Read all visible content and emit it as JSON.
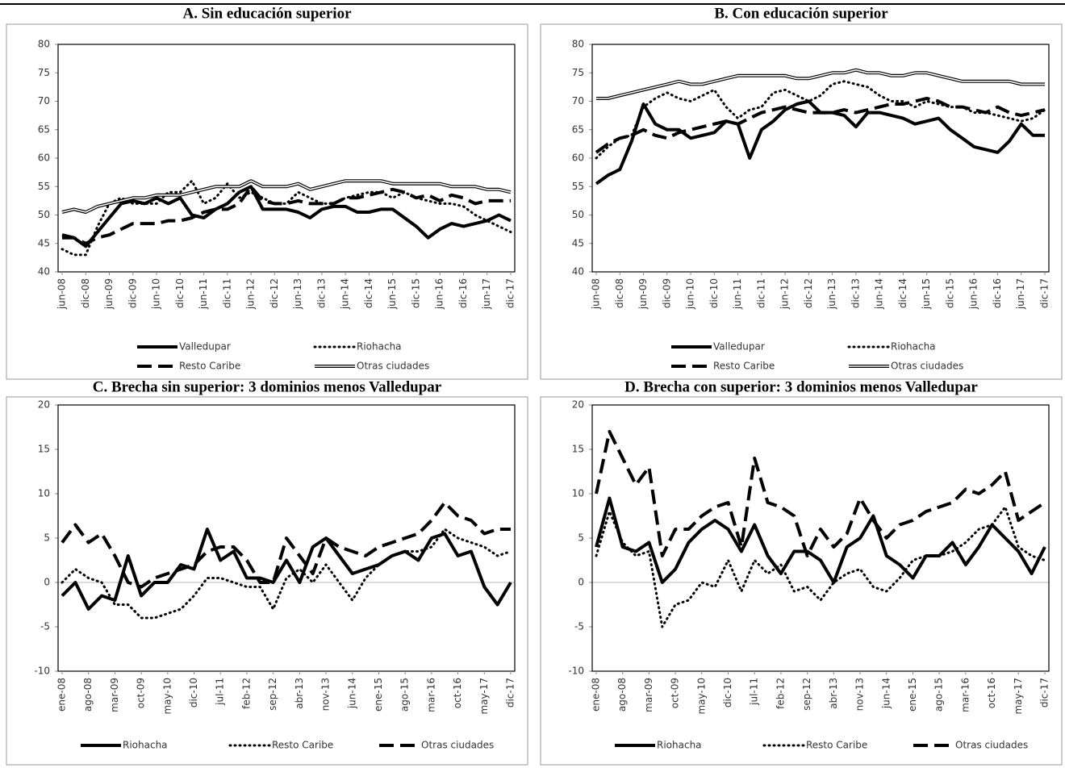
{
  "chart_data": [
    {
      "type": "line",
      "title": "A. Sin educación superior",
      "categories": [
        "jun-08",
        null,
        "dic-08",
        null,
        "jun-09",
        null,
        "dic-09",
        null,
        "jun-10",
        null,
        "dic-10",
        null,
        "jun-11",
        null,
        "dic-11",
        null,
        "jun-12",
        null,
        "dic-12",
        null,
        "jun-13",
        null,
        "dic-13",
        null,
        "jun-14",
        null,
        "dic-14",
        null,
        "jun-15",
        null,
        "dic-15",
        null,
        "jun-16",
        null,
        "dic-16",
        null,
        "jun-17",
        null,
        "dic-17"
      ],
      "ylim": [
        40,
        80
      ],
      "yticks": [
        40,
        45,
        50,
        55,
        60,
        65,
        70,
        75,
        80
      ],
      "zero_line": false,
      "series": [
        {
          "name": "Valledupar",
          "color": "#000000",
          "line_style": "solid",
          "values": [
            46,
            46,
            44.5,
            47,
            49.5,
            52,
            52.5,
            52,
            53,
            52,
            53,
            50,
            49.5,
            51,
            52,
            54,
            55,
            51,
            51,
            51,
            50.5,
            49.5,
            51,
            51.5,
            51.5,
            50.5,
            50.5,
            51,
            51,
            49.5,
            48,
            46,
            47.5,
            48.5,
            48,
            48.5,
            49,
            50,
            49
          ]
        },
        {
          "name": "Riohacha",
          "color": "#000000",
          "line_style": "dotted",
          "values": [
            44,
            43,
            43,
            48,
            52,
            53,
            52,
            52,
            52,
            54,
            54,
            56,
            52,
            53,
            55.5,
            53,
            54,
            53,
            52,
            52,
            54,
            53,
            52,
            52,
            53,
            53.5,
            54,
            54,
            53,
            54,
            53,
            52.5,
            52,
            52,
            51.5,
            50,
            49,
            48,
            47
          ]
        },
        {
          "name": "Resto Caribe",
          "color": "#000000",
          "line_style": "dashed",
          "values": [
            46.5,
            46,
            45,
            46,
            46.5,
            47.5,
            48.5,
            48.5,
            48.5,
            49,
            49,
            49.5,
            50.5,
            51,
            51,
            52,
            55,
            52.5,
            52,
            52,
            52.5,
            52,
            52,
            52,
            53,
            53,
            53.5,
            54,
            54.5,
            54,
            53,
            53.5,
            52.5,
            53.5,
            53,
            52,
            52.5,
            52.5,
            52.5
          ]
        },
        {
          "name": "Otras ciudades",
          "color": "#000000",
          "line_style": "double",
          "values": [
            50.5,
            51,
            50.5,
            51.5,
            52,
            52.5,
            53,
            53,
            53.5,
            53.5,
            53.5,
            54,
            54.5,
            55,
            55,
            55,
            56,
            55,
            55,
            55,
            55.5,
            54.5,
            55,
            55.5,
            56,
            56,
            56,
            56,
            55.5,
            55.5,
            55.5,
            55.5,
            55.5,
            55,
            55,
            55,
            54.5,
            54.5,
            54
          ]
        }
      ]
    },
    {
      "type": "line",
      "title": "B. Con educación superior",
      "categories": [
        "jun-08",
        null,
        "dic-08",
        null,
        "jun-09",
        null,
        "dic-09",
        null,
        "jun-10",
        null,
        "dic-10",
        null,
        "jun-11",
        null,
        "dic-11",
        null,
        "jun-12",
        null,
        "dic-12",
        null,
        "jun-13",
        null,
        "dic-13",
        null,
        "jun-14",
        null,
        "dic-14",
        null,
        "jun-15",
        null,
        "dic-15",
        null,
        "jun-16",
        null,
        "dic-16",
        null,
        "jun-17",
        null,
        "dic-17"
      ],
      "ylim": [
        40,
        80
      ],
      "yticks": [
        40,
        45,
        50,
        55,
        60,
        65,
        70,
        75,
        80
      ],
      "zero_line": false,
      "series": [
        {
          "name": "Valledupar",
          "color": "#000000",
          "line_style": "solid",
          "values": [
            55.5,
            57,
            58,
            63,
            69.5,
            66,
            65,
            65,
            63.5,
            64,
            64.5,
            66.5,
            66,
            60,
            65,
            66.5,
            68.5,
            69.5,
            70,
            68,
            68,
            67.5,
            65.5,
            68,
            68,
            67.5,
            67,
            66,
            66.5,
            67,
            65,
            63.5,
            62,
            61.5,
            61,
            63,
            66,
            64,
            64
          ]
        },
        {
          "name": "Riohacha",
          "color": "#000000",
          "line_style": "dotted",
          "values": [
            60,
            62,
            63.5,
            64,
            69,
            70.5,
            71.5,
            70.5,
            70,
            71,
            72,
            69,
            67,
            68.5,
            69,
            71.5,
            72,
            71,
            70,
            71,
            73,
            73.5,
            73,
            72.5,
            71,
            70,
            70,
            69,
            70,
            69.5,
            69,
            69,
            68,
            68,
            67.5,
            67,
            66.5,
            67,
            68.5
          ]
        },
        {
          "name": "Resto Caribe",
          "color": "#000000",
          "line_style": "dashed",
          "values": [
            61,
            62.5,
            63.5,
            64,
            65,
            64,
            63.5,
            64.5,
            65,
            65.5,
            66,
            66.5,
            66,
            67,
            68,
            68.5,
            69,
            68.5,
            68,
            68,
            68,
            68.5,
            68,
            68.5,
            69,
            69.5,
            69.5,
            70,
            70.5,
            70,
            69,
            69,
            68.5,
            68,
            69,
            68,
            67.5,
            68,
            68.5
          ]
        },
        {
          "name": "Otras ciudades",
          "color": "#000000",
          "line_style": "double",
          "values": [
            70.5,
            70.5,
            71,
            71.5,
            72,
            72.5,
            73,
            73.5,
            73,
            73,
            73.5,
            74,
            74.5,
            74.5,
            74.5,
            74.5,
            74.5,
            74,
            74,
            74.5,
            75,
            75,
            75.5,
            75,
            75,
            74.5,
            74.5,
            75,
            75,
            74.5,
            74,
            73.5,
            73.5,
            73.5,
            73.5,
            73.5,
            73,
            73,
            73
          ]
        }
      ]
    },
    {
      "type": "line",
      "title": "C. Brecha sin superior: 3 dominios menos Valledupar",
      "categories": [
        "ene-08",
        null,
        "ago-08",
        null,
        "mar-09",
        null,
        "oct-09",
        null,
        "may-10",
        null,
        "dic-10",
        null,
        "jul-11",
        null,
        "feb-12",
        null,
        "sep-12",
        null,
        "abr-13",
        null,
        "nov-13",
        null,
        "jun-14",
        null,
        "ene-15",
        null,
        "ago-15",
        null,
        "mar-16",
        null,
        "oct-16",
        null,
        "may-17",
        null,
        "dic-17"
      ],
      "ylim": [
        -10,
        20
      ],
      "yticks": [
        -10,
        -5,
        0,
        5,
        10,
        15,
        20
      ],
      "zero_line": true,
      "series": [
        {
          "name": "Riohacha",
          "color": "#000000",
          "line_style": "solid",
          "values": [
            -1.5,
            0,
            -3,
            -1.5,
            -2,
            3,
            -1.5,
            0,
            0,
            2,
            1.5,
            6,
            2.5,
            3.5,
            0.5,
            0.5,
            0,
            2.5,
            0,
            4,
            5,
            3,
            1,
            1.5,
            2,
            3,
            3.5,
            2.5,
            5,
            5.5,
            3,
            3.5,
            -0.5,
            -2.5,
            0
          ]
        },
        {
          "name": "Resto Caribe",
          "color": "#000000",
          "line_style": "dotted",
          "values": [
            0,
            1.5,
            0.5,
            0,
            -2.5,
            -2.5,
            -4,
            -4,
            -3.5,
            -3,
            -1.5,
            0.5,
            0.5,
            0,
            -0.5,
            -0.5,
            -3,
            0.5,
            1.5,
            0,
            2,
            0,
            -2,
            0.5,
            2,
            3,
            3.5,
            3.5,
            4,
            6,
            5,
            4.5,
            4,
            3,
            3.5
          ]
        },
        {
          "name": "Otras ciudades",
          "color": "#000000",
          "line_style": "dashed",
          "values": [
            4.5,
            6.5,
            4.5,
            5.5,
            3,
            0,
            -0.5,
            0.5,
            1,
            1.5,
            2,
            3.5,
            4,
            4,
            2.5,
            0,
            0,
            5,
            3,
            1,
            5,
            4,
            3.5,
            3,
            4,
            4.5,
            5,
            5.5,
            7,
            9,
            7.5,
            7,
            5.5,
            6,
            6
          ]
        }
      ]
    },
    {
      "type": "line",
      "title": "D. Brecha con superior: 3 dominios menos Valledupar",
      "categories": [
        "ene-08",
        null,
        "ago-08",
        null,
        "mar-09",
        null,
        "oct-09",
        null,
        "may-10",
        null,
        "dic-10",
        null,
        "jul-11",
        null,
        "feb-12",
        null,
        "sep-12",
        null,
        "abr-13",
        null,
        "nov-13",
        null,
        "jun-14",
        null,
        "ene-15",
        null,
        "ago-15",
        null,
        "mar-16",
        null,
        "oct-16",
        null,
        "may-17",
        null,
        "dic-17"
      ],
      "ylim": [
        -10,
        20
      ],
      "yticks": [
        -10,
        -5,
        0,
        5,
        10,
        15,
        20
      ],
      "zero_line": true,
      "series": [
        {
          "name": "Riohacha",
          "color": "#000000",
          "line_style": "solid",
          "values": [
            4,
            9.5,
            4,
            3.5,
            4.5,
            0,
            1.5,
            4.5,
            6,
            7,
            6,
            3.5,
            6.5,
            3,
            1,
            3.5,
            3.5,
            2.5,
            0,
            4,
            5,
            7.5,
            3,
            2,
            0.5,
            3,
            3,
            4.5,
            2,
            4,
            6.5,
            5,
            3.5,
            1,
            4
          ]
        },
        {
          "name": "Resto Caribe",
          "color": "#000000",
          "line_style": "dotted",
          "values": [
            3,
            8,
            4.5,
            3,
            3.5,
            -5,
            -2.5,
            -2,
            0,
            -0.5,
            2.5,
            -1,
            2.5,
            1,
            2,
            -1,
            -0.5,
            -2,
            0,
            1,
            1.5,
            -0.5,
            -1,
            0.5,
            2.5,
            3,
            3,
            3.5,
            4.5,
            6,
            6.5,
            8.5,
            4,
            3,
            2.5
          ]
        },
        {
          "name": "Otras ciudades",
          "color": "#000000",
          "line_style": "dashed",
          "values": [
            10,
            17,
            14,
            11,
            13,
            3,
            6,
            6,
            7.5,
            8.5,
            9,
            4,
            14,
            9,
            8.5,
            7.5,
            3,
            6,
            4,
            5.5,
            9.5,
            7,
            5,
            6.5,
            7,
            8,
            8.5,
            9,
            10.5,
            10,
            11,
            12.5,
            7,
            8,
            9
          ]
        }
      ]
    }
  ]
}
